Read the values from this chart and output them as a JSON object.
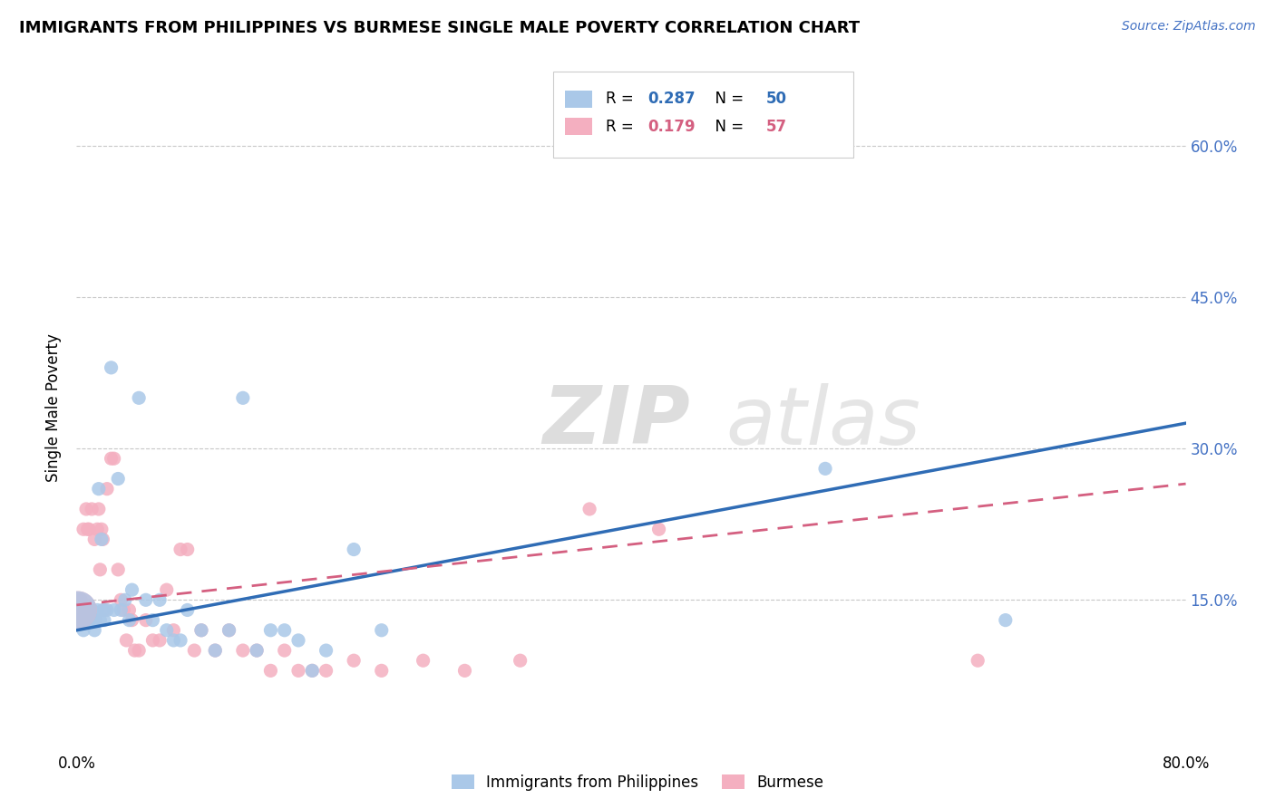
{
  "title": "IMMIGRANTS FROM PHILIPPINES VS BURMESE SINGLE MALE POVERTY CORRELATION CHART",
  "source": "Source: ZipAtlas.com",
  "ylabel": "Single Male Poverty",
  "xlim": [
    0.0,
    0.8
  ],
  "ylim": [
    0.0,
    0.68
  ],
  "xtick_positions": [
    0.0,
    0.2,
    0.4,
    0.6,
    0.8
  ],
  "xtick_labels": [
    "0.0%",
    "",
    "",
    "",
    "80.0%"
  ],
  "ytick_vals": [
    0.15,
    0.3,
    0.45,
    0.6
  ],
  "ytick_labels": [
    "15.0%",
    "30.0%",
    "45.0%",
    "60.0%"
  ],
  "watermark": "ZIPatlas",
  "blue_color": "#aac8e8",
  "pink_color": "#f4afc0",
  "blue_line_color": "#2f6cb5",
  "pink_line_color": "#d45f80",
  "legend_blue_label": "Immigrants from Philippines",
  "legend_pink_label": "Burmese",
  "blue_R": 0.287,
  "blue_N": 50,
  "pink_R": 0.179,
  "pink_N": 57,
  "blue_x": [
    0.001,
    0.002,
    0.003,
    0.004,
    0.005,
    0.006,
    0.007,
    0.008,
    0.009,
    0.01,
    0.011,
    0.012,
    0.013,
    0.014,
    0.015,
    0.016,
    0.017,
    0.018,
    0.019,
    0.02,
    0.022,
    0.025,
    0.027,
    0.03,
    0.032,
    0.035,
    0.038,
    0.04,
    0.045,
    0.05,
    0.055,
    0.06,
    0.065,
    0.07,
    0.075,
    0.08,
    0.09,
    0.1,
    0.11,
    0.12,
    0.13,
    0.14,
    0.15,
    0.16,
    0.17,
    0.18,
    0.2,
    0.22,
    0.54,
    0.67
  ],
  "blue_y": [
    0.14,
    0.13,
    0.15,
    0.13,
    0.12,
    0.14,
    0.14,
    0.13,
    0.14,
    0.13,
    0.14,
    0.13,
    0.12,
    0.13,
    0.14,
    0.26,
    0.13,
    0.21,
    0.14,
    0.13,
    0.14,
    0.38,
    0.14,
    0.27,
    0.14,
    0.15,
    0.13,
    0.16,
    0.35,
    0.15,
    0.13,
    0.15,
    0.12,
    0.11,
    0.11,
    0.14,
    0.12,
    0.1,
    0.12,
    0.35,
    0.1,
    0.12,
    0.12,
    0.11,
    0.08,
    0.1,
    0.2,
    0.12,
    0.28,
    0.13
  ],
  "pink_x": [
    0.001,
    0.002,
    0.003,
    0.004,
    0.005,
    0.006,
    0.007,
    0.008,
    0.009,
    0.01,
    0.011,
    0.012,
    0.013,
    0.014,
    0.015,
    0.016,
    0.017,
    0.018,
    0.019,
    0.02,
    0.022,
    0.025,
    0.027,
    0.03,
    0.032,
    0.034,
    0.036,
    0.038,
    0.04,
    0.042,
    0.045,
    0.05,
    0.055,
    0.06,
    0.065,
    0.07,
    0.075,
    0.08,
    0.085,
    0.09,
    0.1,
    0.11,
    0.12,
    0.13,
    0.14,
    0.15,
    0.16,
    0.17,
    0.18,
    0.2,
    0.22,
    0.25,
    0.28,
    0.32,
    0.37,
    0.42,
    0.65
  ],
  "pink_y": [
    0.14,
    0.13,
    0.15,
    0.13,
    0.22,
    0.14,
    0.24,
    0.22,
    0.22,
    0.14,
    0.24,
    0.13,
    0.21,
    0.13,
    0.22,
    0.24,
    0.18,
    0.22,
    0.21,
    0.14,
    0.26,
    0.29,
    0.29,
    0.18,
    0.15,
    0.14,
    0.11,
    0.14,
    0.13,
    0.1,
    0.1,
    0.13,
    0.11,
    0.11,
    0.16,
    0.12,
    0.2,
    0.2,
    0.1,
    0.12,
    0.1,
    0.12,
    0.1,
    0.1,
    0.08,
    0.1,
    0.08,
    0.08,
    0.08,
    0.09,
    0.08,
    0.09,
    0.08,
    0.09,
    0.24,
    0.22,
    0.09
  ],
  "dot_size": 120,
  "big_dot_size": 900
}
